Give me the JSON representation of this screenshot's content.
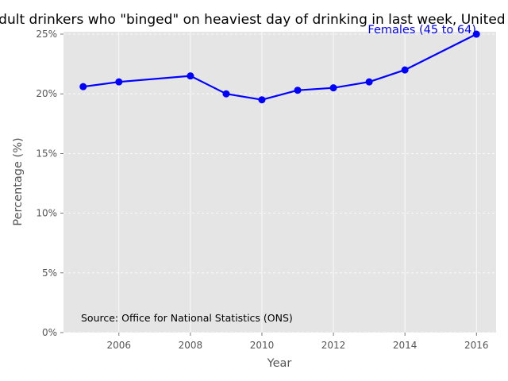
{
  "chart_data": {
    "type": "line",
    "title": "Adult drinkers who \"binged\" on heaviest day of drinking in last week, United Kingdom",
    "xlabel": "Year",
    "ylabel": "Percentage (%)",
    "x": [
      2005,
      2006,
      2008,
      2009,
      2010,
      2011,
      2012,
      2013,
      2014,
      2016
    ],
    "xlim": [
      2004.45,
      2016.55
    ],
    "ylim": [
      0,
      25.2
    ],
    "xticks": [
      2006,
      2008,
      2010,
      2012,
      2014,
      2016
    ],
    "yticks": [
      0,
      5,
      10,
      15,
      20,
      25
    ],
    "ytick_labels": [
      "0%",
      "5%",
      "10%",
      "15%",
      "20%",
      "25%"
    ],
    "series": [
      {
        "name": "Females (45 to 64)",
        "values": [
          20.6,
          21.0,
          21.5,
          20.0,
          19.5,
          20.3,
          20.5,
          21.0,
          22.0,
          25.0
        ],
        "color": "#0000ff"
      }
    ],
    "annotation": "Source: Office for National Statistics (ONS)",
    "grid": true,
    "plot_background": "#e5e5e5",
    "grid_color": "#ffffff"
  }
}
